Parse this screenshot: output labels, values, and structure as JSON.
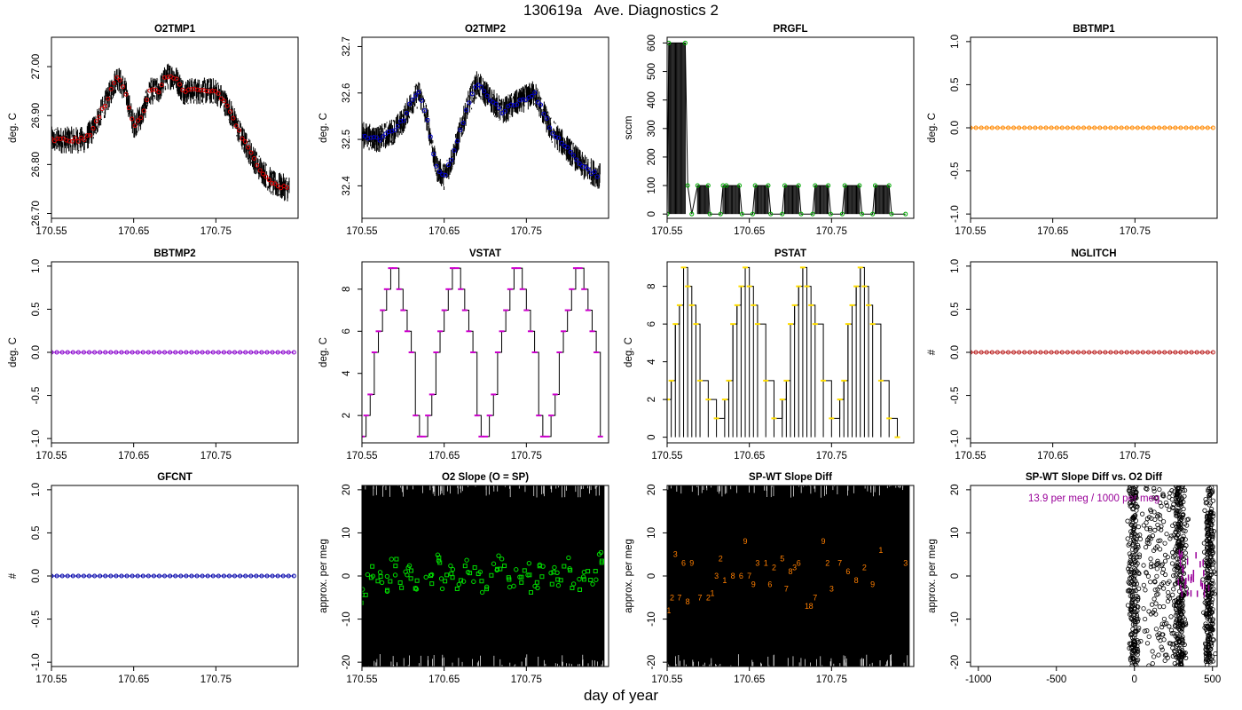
{
  "figure": {
    "title": "130619a   Ave. Diagnostics 2",
    "xlabel": "day of year"
  },
  "colors": {
    "red": "#dd0000",
    "blue": "#0000cc",
    "green": "#00aa00",
    "orange": "#ff8800",
    "purple": "#8800cc",
    "magenta": "#cc00cc",
    "yellow": "#ffdd00",
    "brown": "#bb2222",
    "navy": "#0000aa",
    "bright_green": "#00dd00",
    "dark_orange": "#ff7f00",
    "label_purple": "#990099"
  },
  "chart_data": [
    {
      "id": "o2tmp1",
      "type": "line",
      "title": "O2TMP1",
      "xlabel": "",
      "ylabel": "deg. C",
      "xlim": [
        170.55,
        170.85
      ],
      "ylim": [
        26.69,
        27.06
      ],
      "xticks": [
        "170.55",
        "170.65",
        "170.75"
      ],
      "yticks": [
        "26.70",
        "26.80",
        "26.90",
        "27.00"
      ],
      "marker_color": "red",
      "series": [
        {
          "x": [
            170.55,
            170.57,
            170.59,
            170.6,
            170.62,
            170.63,
            170.64,
            170.65,
            170.66,
            170.67,
            170.68,
            170.69,
            170.7,
            170.71,
            170.72,
            170.74,
            170.75,
            170.76,
            170.77,
            170.78,
            170.8,
            170.82,
            170.84
          ],
          "values": [
            26.85,
            26.85,
            26.85,
            26.87,
            26.94,
            26.98,
            26.95,
            26.88,
            26.9,
            26.95,
            26.95,
            26.98,
            26.98,
            26.95,
            26.95,
            26.95,
            26.95,
            26.93,
            26.9,
            26.86,
            26.8,
            26.76,
            26.75
          ]
        }
      ]
    },
    {
      "id": "o2tmp2",
      "type": "line",
      "title": "O2TMP2",
      "xlabel": "",
      "ylabel": "deg. C",
      "xlim": [
        170.55,
        170.85
      ],
      "ylim": [
        32.33,
        32.72
      ],
      "xticks": [
        "170.55",
        "170.65",
        "170.75"
      ],
      "yticks": [
        "32.4",
        "32.5",
        "32.6",
        "32.7"
      ],
      "marker_color": "blue",
      "series": [
        {
          "x": [
            170.55,
            170.57,
            170.59,
            170.6,
            170.61,
            170.62,
            170.63,
            170.64,
            170.65,
            170.66,
            170.67,
            170.68,
            170.69,
            170.7,
            170.72,
            170.74,
            170.76,
            170.78,
            170.8,
            170.82,
            170.84
          ],
          "values": [
            32.51,
            32.5,
            32.52,
            32.54,
            32.58,
            32.6,
            32.54,
            32.44,
            32.42,
            32.46,
            32.52,
            32.58,
            32.62,
            32.6,
            32.56,
            32.58,
            32.6,
            32.52,
            32.48,
            32.44,
            32.42
          ]
        }
      ]
    },
    {
      "id": "prgfl",
      "type": "line",
      "title": "PRGFL",
      "xlabel": "",
      "ylabel": "sccm",
      "xlim": [
        170.55,
        170.85
      ],
      "ylim": [
        -15,
        620
      ],
      "xticks": [
        "170.55",
        "170.65",
        "170.75"
      ],
      "yticks": [
        "0",
        "100",
        "200",
        "300",
        "400",
        "500",
        "600"
      ],
      "marker_color": "green",
      "series": [
        {
          "x": [
            170.55,
            170.552,
            170.572,
            170.575,
            170.58,
            170.587,
            170.6,
            170.602,
            170.615,
            170.618,
            170.622,
            170.638,
            170.641,
            170.654,
            170.657,
            170.673,
            170.676,
            170.69,
            170.693,
            170.71,
            170.713,
            170.727,
            170.73,
            170.746,
            170.749,
            170.763,
            170.766,
            170.784,
            170.787,
            170.8,
            170.803,
            170.82,
            170.823,
            170.84
          ],
          "values": [
            0,
            600,
            600,
            100,
            0,
            100,
            100,
            0,
            0,
            100,
            100,
            100,
            0,
            0,
            100,
            100,
            0,
            0,
            100,
            100,
            0,
            0,
            100,
            100,
            0,
            0,
            100,
            100,
            0,
            0,
            100,
            100,
            0,
            0
          ]
        }
      ]
    },
    {
      "id": "bbtmp1",
      "type": "line",
      "title": "BBTMP1",
      "xlabel": "",
      "ylabel": "deg. C",
      "xlim": [
        170.55,
        170.85
      ],
      "ylim": [
        -1.05,
        1.05
      ],
      "xticks": [
        "170.55",
        "170.65",
        "170.75"
      ],
      "yticks": [
        "-1.0",
        "-0.5",
        "0.0",
        "0.5",
        "1.0"
      ],
      "marker_color": "orange",
      "series": [
        {
          "x": [
            170.55,
            170.845
          ],
          "values": [
            0,
            0
          ]
        }
      ]
    },
    {
      "id": "bbtmp2",
      "type": "line",
      "title": "BBTMP2",
      "xlabel": "",
      "ylabel": "deg. C",
      "xlim": [
        170.55,
        170.85
      ],
      "ylim": [
        -1.05,
        1.05
      ],
      "xticks": [
        "170.55",
        "170.65",
        "170.75"
      ],
      "yticks": [
        "-1.0",
        "-0.5",
        "0.0",
        "0.5",
        "1.0"
      ],
      "marker_color": "purple",
      "series": [
        {
          "x": [
            170.55,
            170.845
          ],
          "values": [
            0,
            0
          ]
        }
      ]
    },
    {
      "id": "vstat",
      "type": "line",
      "title": "VSTAT",
      "xlabel": "",
      "ylabel": "deg. C",
      "xlim": [
        170.55,
        170.85
      ],
      "ylim": [
        0.7,
        9.3
      ],
      "xticks": [
        "170.55",
        "170.65",
        "170.75"
      ],
      "yticks": [
        "2",
        "4",
        "6",
        "8"
      ],
      "marker_color": "magenta",
      "series": [
        {
          "x": [
            170.55,
            170.555,
            170.56,
            170.565,
            170.57,
            170.575,
            170.58,
            170.585,
            170.59,
            170.595,
            170.6,
            170.605,
            170.61,
            170.615,
            170.62,
            170.625,
            170.63,
            170.635,
            170.64,
            170.645,
            170.65,
            170.655,
            170.66,
            170.665,
            170.67,
            170.675,
            170.68,
            170.685,
            170.69,
            170.695,
            170.7,
            170.705,
            170.71,
            170.715,
            170.72,
            170.725,
            170.73,
            170.735,
            170.74,
            170.745,
            170.75,
            170.755,
            170.76,
            170.765,
            170.77,
            170.775,
            170.78,
            170.785,
            170.79,
            170.795,
            170.8,
            170.805,
            170.81,
            170.815,
            170.82,
            170.825,
            170.83,
            170.835,
            170.84
          ],
          "values": [
            1,
            2,
            3,
            5,
            6,
            7,
            8,
            9,
            9,
            8,
            7,
            6,
            5,
            2,
            1,
            1,
            2,
            3,
            5,
            6,
            7,
            8,
            9,
            9,
            8,
            7,
            6,
            5,
            2,
            1,
            1,
            2,
            3,
            5,
            6,
            7,
            8,
            9,
            9,
            8,
            7,
            6,
            5,
            2,
            1,
            1,
            2,
            3,
            5,
            6,
            7,
            8,
            9,
            9,
            8,
            7,
            6,
            5,
            1
          ]
        }
      ]
    },
    {
      "id": "pstat",
      "type": "line",
      "title": "PSTAT",
      "xlabel": "",
      "ylabel": "deg. C",
      "xlim": [
        170.55,
        170.85
      ],
      "ylim": [
        -0.3,
        9.3
      ],
      "xticks": [
        "170.55",
        "170.65",
        "170.75"
      ],
      "yticks": [
        "0",
        "2",
        "4",
        "6",
        "8"
      ],
      "marker_color": "yellow",
      "series": [
        {
          "x": [
            170.55,
            170.555,
            170.56,
            170.565,
            170.57,
            170.575,
            170.58,
            170.585,
            170.59,
            170.6,
            170.61,
            170.62,
            170.625,
            170.63,
            170.635,
            170.64,
            170.645,
            170.65,
            170.655,
            170.66,
            170.67,
            170.68,
            170.69,
            170.695,
            170.7,
            170.705,
            170.71,
            170.715,
            170.72,
            170.725,
            170.73,
            170.74,
            170.75,
            170.76,
            170.765,
            170.77,
            170.775,
            170.78,
            170.785,
            170.79,
            170.795,
            170.8,
            170.81,
            170.82,
            170.83
          ],
          "values": [
            2,
            3,
            6,
            7,
            9,
            8,
            7,
            6,
            3,
            2,
            1,
            2,
            3,
            6,
            7,
            8,
            9,
            8,
            7,
            6,
            3,
            1,
            2,
            3,
            6,
            7,
            8,
            9,
            8,
            7,
            6,
            3,
            1,
            2,
            3,
            6,
            7,
            8,
            9,
            8,
            7,
            6,
            3,
            1,
            0
          ]
        }
      ]
    },
    {
      "id": "nglitch",
      "type": "line",
      "title": "NGLITCH",
      "xlabel": "",
      "ylabel": "#",
      "xlim": [
        170.55,
        170.85
      ],
      "ylim": [
        -1.05,
        1.05
      ],
      "xticks": [
        "170.55",
        "170.65",
        "170.75"
      ],
      "yticks": [
        "-1.0",
        "-0.5",
        "0.0",
        "0.5",
        "1.0"
      ],
      "marker_color": "brown",
      "series": [
        {
          "x": [
            170.55,
            170.845
          ],
          "values": [
            0,
            0
          ]
        }
      ]
    },
    {
      "id": "gfcnt",
      "type": "line",
      "title": "GFCNT",
      "xlabel": "",
      "ylabel": "#",
      "xlim": [
        170.55,
        170.85
      ],
      "ylim": [
        -1.05,
        1.05
      ],
      "xticks": [
        "170.55",
        "170.65",
        "170.75"
      ],
      "yticks": [
        "-1.0",
        "-0.5",
        "0.0",
        "0.5",
        "1.0"
      ],
      "marker_color": "navy",
      "series": [
        {
          "x": [
            170.55,
            170.845
          ],
          "values": [
            0,
            0
          ]
        }
      ]
    },
    {
      "id": "o2slope",
      "type": "scatter",
      "title": "O2 Slope (O = SP)",
      "xlabel": "",
      "ylabel": "approx. per meg",
      "xlim": [
        170.55,
        170.85
      ],
      "ylim": [
        -21,
        21
      ],
      "xticks": [
        "170.55",
        "170.65",
        "170.75"
      ],
      "yticks": [
        "-20",
        "-10",
        "0",
        "10",
        "20"
      ],
      "marker_color": "bright_green",
      "series": [
        {
          "x": [
            170.55,
            170.56,
            170.57,
            170.58,
            170.59,
            170.6,
            170.61,
            170.62,
            170.63,
            170.64,
            170.65,
            170.66,
            170.67,
            170.68,
            170.69,
            170.7,
            170.71,
            170.72,
            170.73,
            170.74,
            170.75,
            170.76,
            170.77,
            170.78,
            170.79,
            170.8,
            170.81,
            170.82,
            170.83,
            170.84
          ],
          "values": [
            -5,
            1,
            0,
            -2,
            2,
            -1,
            1,
            -2,
            0,
            3,
            -1,
            1,
            -3,
            2,
            0,
            -2,
            1,
            3,
            -1,
            0,
            2,
            -2,
            1,
            0,
            -1,
            3,
            -2,
            1,
            0,
            4
          ]
        }
      ]
    },
    {
      "id": "spwtdiff",
      "type": "scatter",
      "title": "SP-WT Slope Diff",
      "xlabel": "",
      "ylabel": "approx. per meg",
      "xlim": [
        170.55,
        170.85
      ],
      "ylim": [
        -21,
        21
      ],
      "xticks": [
        "170.55",
        "170.65",
        "170.75"
      ],
      "yticks": [
        "-20",
        "-10",
        "0",
        "10",
        "20"
      ],
      "marker_color": "dark_orange",
      "point_labels": [
        "1",
        "2",
        "3",
        "7",
        "6",
        "8",
        "9",
        "7",
        "2",
        "1",
        "3",
        "2",
        "1",
        "8",
        "6",
        "9",
        "7",
        "9",
        "3",
        "1",
        "6",
        "2",
        "5",
        "7",
        "8",
        "3",
        "6",
        "1",
        "8",
        "7",
        "9",
        "2",
        "3",
        "7",
        "6",
        "8",
        "2",
        "9",
        "1",
        "3"
      ],
      "series": [
        {
          "x": [
            170.552,
            170.556,
            170.56,
            170.565,
            170.57,
            170.575,
            170.58,
            170.59,
            170.6,
            170.605,
            170.61,
            170.615,
            170.62,
            170.63,
            170.64,
            170.645,
            170.65,
            170.655,
            170.66,
            170.67,
            170.675,
            170.68,
            170.69,
            170.695,
            170.7,
            170.705,
            170.71,
            170.72,
            170.725,
            170.73,
            170.74,
            170.745,
            170.75,
            170.76,
            170.77,
            170.78,
            170.79,
            170.8,
            170.81,
            170.84
          ],
          "values": [
            -8,
            -5,
            5,
            -5,
            3,
            -6,
            3,
            -5,
            -5,
            -4,
            0,
            4,
            -1,
            0,
            0,
            8,
            0,
            -2,
            3,
            3,
            -2,
            2,
            4,
            -3,
            1,
            2,
            3,
            -7,
            -7,
            -5,
            8,
            3,
            -3,
            3,
            1,
            -1,
            2,
            -2,
            6,
            3
          ]
        }
      ]
    },
    {
      "id": "spwtvso2",
      "type": "scatter",
      "title": "SP-WT Slope Diff vs. O2 Diff",
      "xlabel": "",
      "ylabel": "approx. per meg",
      "xlim": [
        -1050,
        530
      ],
      "ylim": [
        -21,
        21
      ],
      "xticks": [
        "-1000",
        "-500",
        "0",
        "500"
      ],
      "yticks": [
        "-20",
        "-10",
        "0",
        "10",
        "20"
      ],
      "marker_color": "label_purple",
      "annotation": "13.9 per meg / 1000 per meg",
      "clusters": [
        {
          "center": -5,
          "spread": 55,
          "n": 260
        },
        {
          "center": 290,
          "spread": 60,
          "n": 340
        },
        {
          "center": 480,
          "spread": 45,
          "n": 300
        },
        {
          "center": 150,
          "spread": 170,
          "n": 160
        }
      ]
    }
  ]
}
